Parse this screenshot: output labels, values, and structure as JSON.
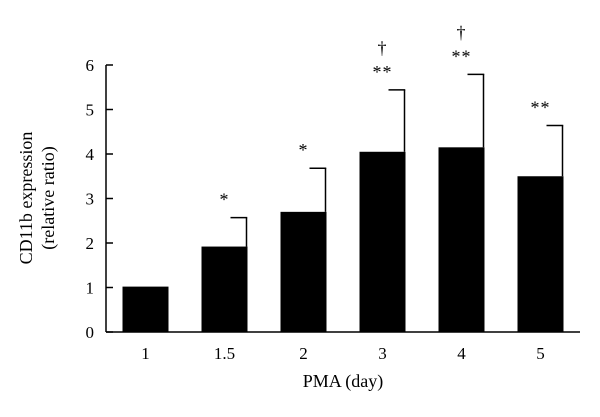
{
  "chart_data": {
    "type": "bar",
    "categories": [
      "1",
      "1.5",
      "2",
      "3",
      "4",
      "5"
    ],
    "values": [
      1.02,
      1.92,
      2.7,
      4.05,
      4.15,
      3.5
    ],
    "error_upper": [
      1.02,
      2.57,
      3.68,
      5.44,
      5.79,
      4.64
    ],
    "significance": [
      [],
      [
        "*"
      ],
      [
        "*"
      ],
      [
        "**",
        "†"
      ],
      [
        "**",
        "†"
      ],
      [
        "**"
      ]
    ],
    "xlabel": "PMA (day)",
    "ylabel": "CD11b expression",
    "ylabel_line2": "(relative ratio)",
    "ylim": [
      0,
      6
    ],
    "yticks": [
      0,
      1,
      2,
      3,
      4,
      5,
      6
    ],
    "bar_color": "#000000",
    "grid": false,
    "legend": "none"
  }
}
